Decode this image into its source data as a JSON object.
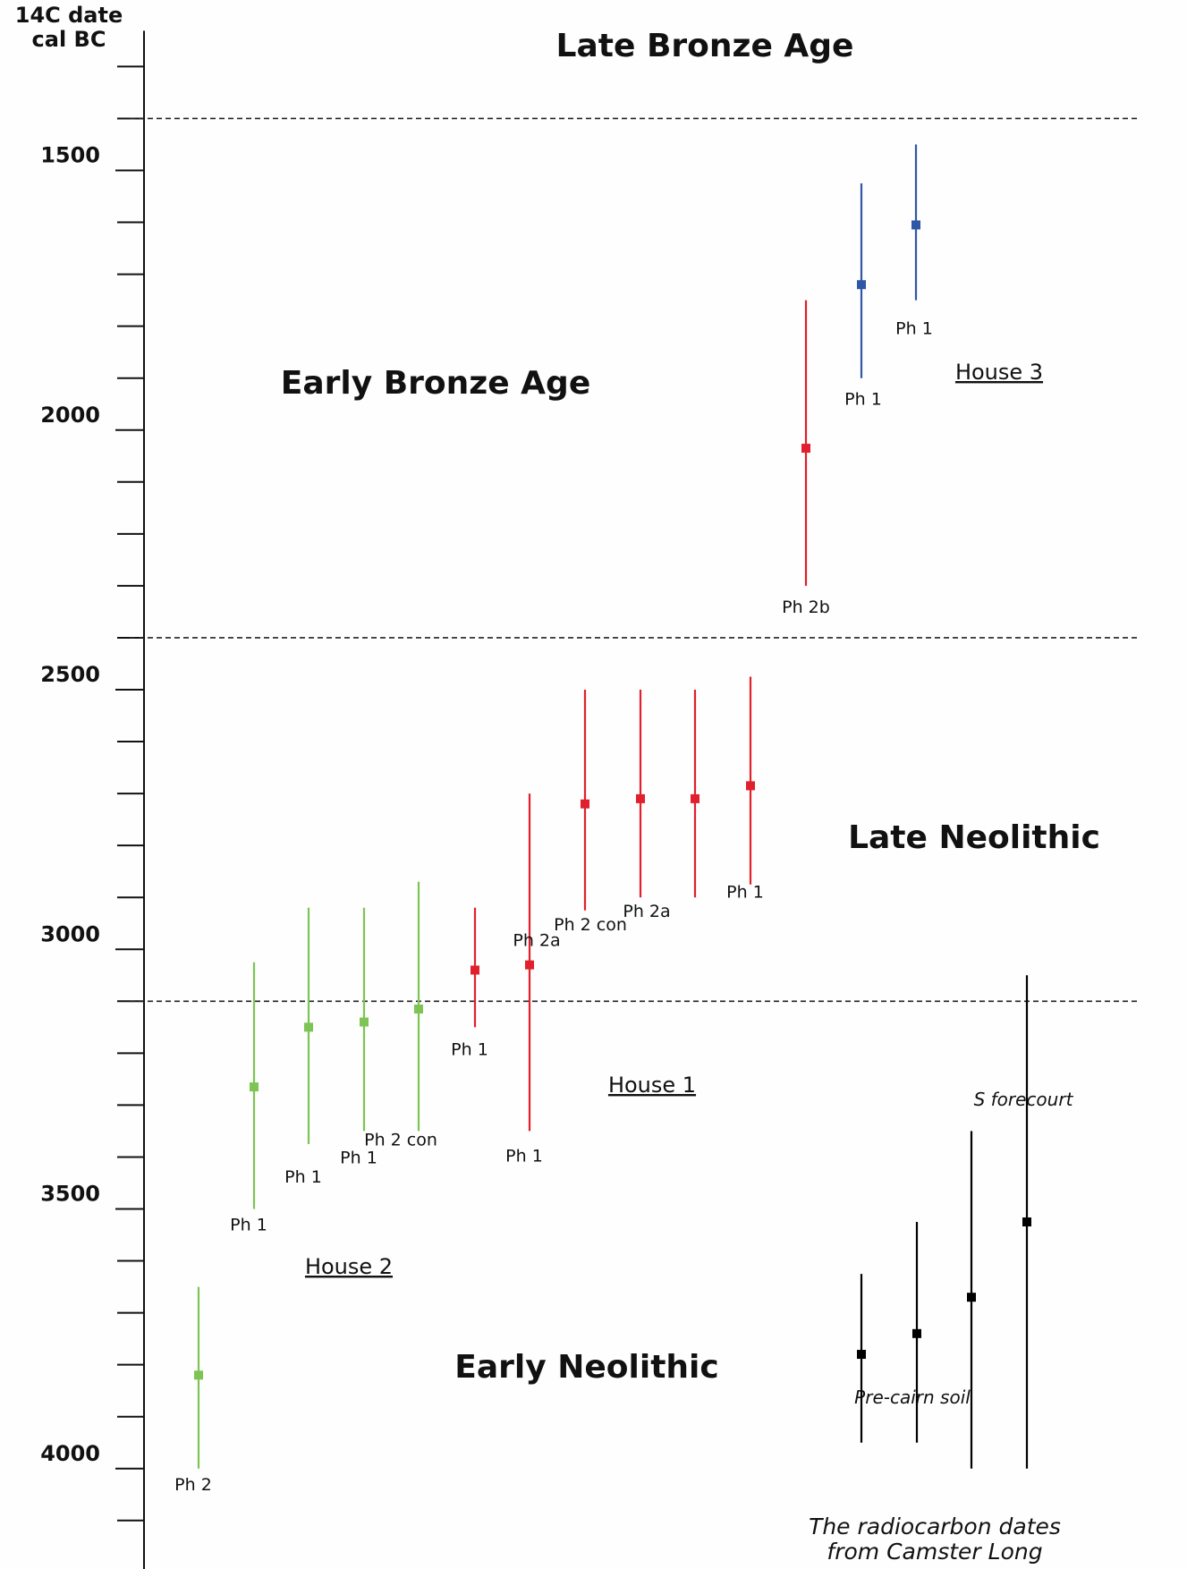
{
  "chart_data": {
    "type": "scatter",
    "subtitle": "",
    "ylabel_line1": "14C date",
    "ylabel_line2": "cal BC",
    "ylim": [
      1300,
      4200
    ],
    "y_inverted": true,
    "yticks_major": [
      1500,
      2000,
      2500,
      3000,
      3500,
      4000
    ],
    "yticks_minor_step": 100,
    "grid": false,
    "period_boundaries": [
      1400,
      2400,
      3100
    ],
    "periods": {
      "late_bronze_age": "Late Bronze Age",
      "early_bronze_age": "Early Bronze Age",
      "late_neolithic": "Late Neolithic",
      "early_neolithic": "Early Neolithic"
    },
    "groups": {
      "house1": "House 1",
      "house2": "House 2",
      "house3": "House 3",
      "pre_cairn": "Pre-cairn soil",
      "s_forecourt": "S forecourt"
    },
    "caption_line1": "The radiocarbon dates",
    "caption_line2": "from Camster Long",
    "colors": {
      "green": "#7dc455",
      "red": "#e0202c",
      "blue": "#2e57a6",
      "black": "#000000"
    },
    "series": [
      {
        "group": "House 2",
        "color": "green",
        "points": [
          {
            "label": "Ph 2",
            "y": 3820,
            "low": 3650,
            "high": 4000
          },
          {
            "label": "Ph 1",
            "y": 3265,
            "low": 3025,
            "high": 3500
          },
          {
            "label": "Ph 1",
            "y": 3150,
            "low": 2920,
            "high": 3375
          },
          {
            "label": "Ph 1",
            "y": 3140,
            "low": 2920,
            "high": 3350
          },
          {
            "label": "Ph 2 con",
            "y": 3115,
            "low": 2870,
            "high": 3350
          }
        ]
      },
      {
        "group": "House 1",
        "color": "red",
        "points": [
          {
            "label": "Ph 1",
            "y": 3040,
            "low": 2920,
            "high": 3150
          },
          {
            "label": "Ph 1",
            "y": 3030,
            "low": 2700,
            "high": 3350
          },
          {
            "label": "Ph 2a",
            "y": 2720,
            "low": 2500,
            "high": 2925
          },
          {
            "label": "Ph 2 con",
            "y": 2710,
            "low": 2500,
            "high": 2900
          },
          {
            "label": "Ph 2a",
            "y": 2710,
            "low": 2500,
            "high": 2900
          },
          {
            "label": "Ph 1",
            "y": 2685,
            "low": 2475,
            "high": 2875
          },
          {
            "label": "Ph 2b",
            "y": 2035,
            "low": 1750,
            "high": 2300
          }
        ]
      },
      {
        "group": "House 3",
        "color": "blue",
        "points": [
          {
            "label": "Ph 1",
            "y": 1720,
            "low": 1525,
            "high": 1900
          },
          {
            "label": "Ph 1",
            "y": 1605,
            "low": 1450,
            "high": 1750
          }
        ]
      },
      {
        "group": "Pre-cairn soil",
        "color": "black",
        "points": [
          {
            "label": "",
            "y": 3780,
            "low": 3625,
            "high": 3950
          },
          {
            "label": "",
            "y": 3740,
            "low": 3525,
            "high": 3950
          },
          {
            "label": "",
            "y": 3670,
            "low": 3350,
            "high": 4000
          }
        ]
      },
      {
        "group": "S forecourt",
        "color": "black",
        "points": [
          {
            "label": "",
            "y": 3525,
            "low": 3050,
            "high": 4000
          }
        ]
      }
    ]
  }
}
